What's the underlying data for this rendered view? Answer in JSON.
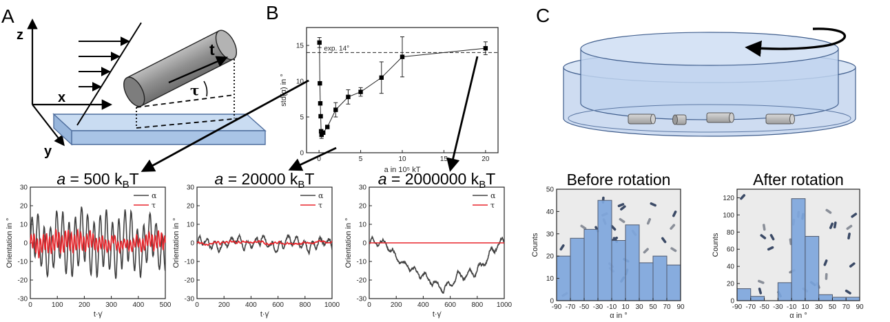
{
  "panels": {
    "a": "A",
    "b": "B",
    "c": "C"
  },
  "schematic": {
    "axis_z": "z",
    "axis_x": "x",
    "axis_y": "y",
    "vec_t": "t",
    "angle_tau": "τ"
  },
  "colors": {
    "alpha": "#404040",
    "tau": "#e8252b",
    "bar_fill": "#7ea6dc",
    "bar_edge": "#505a6e",
    "glass": "#c7d8ef",
    "glass_edge": "#5d7aa8",
    "cylinder": "#9a9a9a"
  },
  "chart_data": [
    {
      "id": "b",
      "type": "scatter",
      "title": "",
      "xlabel": "a in 10⁵ kT",
      "ylabel": "std(α) in °",
      "xlim": [
        -1.5,
        21.5
      ],
      "ylim": [
        0,
        17.5
      ],
      "xticks": [
        0,
        5,
        10,
        15,
        20
      ],
      "yticks": [
        0,
        5,
        10,
        15
      ],
      "reference_line": {
        "y": 14,
        "label": "exp. 14°"
      },
      "x": [
        0.05,
        0.1,
        0.15,
        0.2,
        0.25,
        0.3,
        0.5,
        1.0,
        2.0,
        3.5,
        5.0,
        7.5,
        10.0,
        20.0
      ],
      "y": [
        15.4,
        9.7,
        6.9,
        5.1,
        3.0,
        2.5,
        2.8,
        3.6,
        6.0,
        7.8,
        8.5,
        10.5,
        13.4,
        14.6
      ],
      "yerr": [
        0.7,
        0,
        0,
        0,
        0,
        0.5,
        0,
        0,
        1.0,
        1.0,
        0.6,
        2.2,
        2.8,
        0.9
      ]
    },
    {
      "id": "ts1",
      "type": "line",
      "title": "a = 500 kBT",
      "title_italic": "a",
      "title_rest": " = 500 k",
      "title_sub": "B",
      "title_end": "T",
      "xlabel": "t·γ̇",
      "ylabel": "Orientation in °",
      "xlim": [
        0,
        500
      ],
      "ylim": [
        -30,
        30
      ],
      "xticks": [
        0,
        100,
        200,
        300,
        400,
        500
      ],
      "yticks": [
        -30,
        -20,
        -10,
        0,
        10,
        20,
        30
      ],
      "series": [
        {
          "name": "α",
          "period": 23,
          "amplitude": 15,
          "wobble": 5,
          "drift": 0,
          "noise": 1.5
        },
        {
          "name": "τ",
          "period": 11.5,
          "amplitude": 5,
          "wobble": 1.5,
          "drift": 0,
          "noise": 0.8
        }
      ]
    },
    {
      "id": "ts2",
      "type": "line",
      "title": "a = 20000 kBT",
      "title_italic": "a",
      "title_rest": " = 20000 k",
      "title_sub": "B",
      "title_end": "T",
      "xlabel": "t·γ̇",
      "ylabel": "Orientation in °",
      "xlim": [
        0,
        1000
      ],
      "ylim": [
        -30,
        30
      ],
      "xticks": [
        0,
        200,
        400,
        600,
        800,
        1000
      ],
      "yticks": [
        -30,
        -20,
        -10,
        0,
        10,
        20,
        30
      ],
      "series": [
        {
          "name": "α",
          "period": 60,
          "amplitude": 2.5,
          "wobble": 1.5,
          "drift": 0,
          "noise": 1.2
        },
        {
          "name": "τ",
          "period": 30,
          "amplitude": 0.4,
          "wobble": 0.3,
          "drift": 0,
          "noise": 0.4
        }
      ]
    },
    {
      "id": "ts3",
      "type": "line",
      "title": "a = 2000000 kBT",
      "title_italic": "a",
      "title_rest": " = 2000000 k",
      "title_sub": "B",
      "title_end": "T",
      "xlabel": "t·γ̇",
      "ylabel": "Orientation in °",
      "xlim": [
        0,
        1000
      ],
      "ylim": [
        -30,
        30
      ],
      "xticks": [
        0,
        200,
        400,
        600,
        800,
        1000
      ],
      "yticks": [
        -30,
        -20,
        -10,
        0,
        10,
        20,
        30
      ],
      "series": [
        {
          "name": "α",
          "period": 80,
          "amplitude": 2,
          "wobble": 1,
          "drift": -22,
          "noise": 1
        },
        {
          "name": "τ",
          "period": 50,
          "amplitude": 0,
          "wobble": 0,
          "drift": 0,
          "noise": 0
        }
      ]
    },
    {
      "id": "hist1",
      "type": "bar",
      "title": "Before rotation",
      "xlabel": "α in °",
      "ylabel": "Counts",
      "xlim": [
        -90,
        90
      ],
      "ylim": [
        0,
        50
      ],
      "xticks": [
        -90,
        -70,
        -50,
        -30,
        -10,
        10,
        30,
        50,
        70,
        90
      ],
      "yticks": [
        0,
        10,
        20,
        30,
        40,
        50
      ],
      "bin_edges": [
        -90,
        -70,
        -50,
        -30,
        -10,
        10,
        30,
        50,
        70,
        90
      ],
      "values": [
        20,
        28,
        32,
        45,
        27,
        34,
        17,
        20,
        16
      ]
    },
    {
      "id": "hist2",
      "type": "bar",
      "title": "After rotation",
      "xlabel": "α in °",
      "ylabel": "Counts",
      "xlim": [
        -90,
        90
      ],
      "ylim": [
        0,
        130
      ],
      "xticks": [
        -90,
        -70,
        -50,
        -30,
        -10,
        10,
        30,
        50,
        70,
        90
      ],
      "yticks": [
        0,
        20,
        40,
        60,
        80,
        100,
        120
      ],
      "bin_edges": [
        -90,
        -70,
        -50,
        -30,
        -10,
        10,
        30,
        50,
        70,
        90
      ],
      "values": [
        14,
        5,
        0,
        21,
        119,
        75,
        7,
        4,
        4
      ]
    }
  ]
}
